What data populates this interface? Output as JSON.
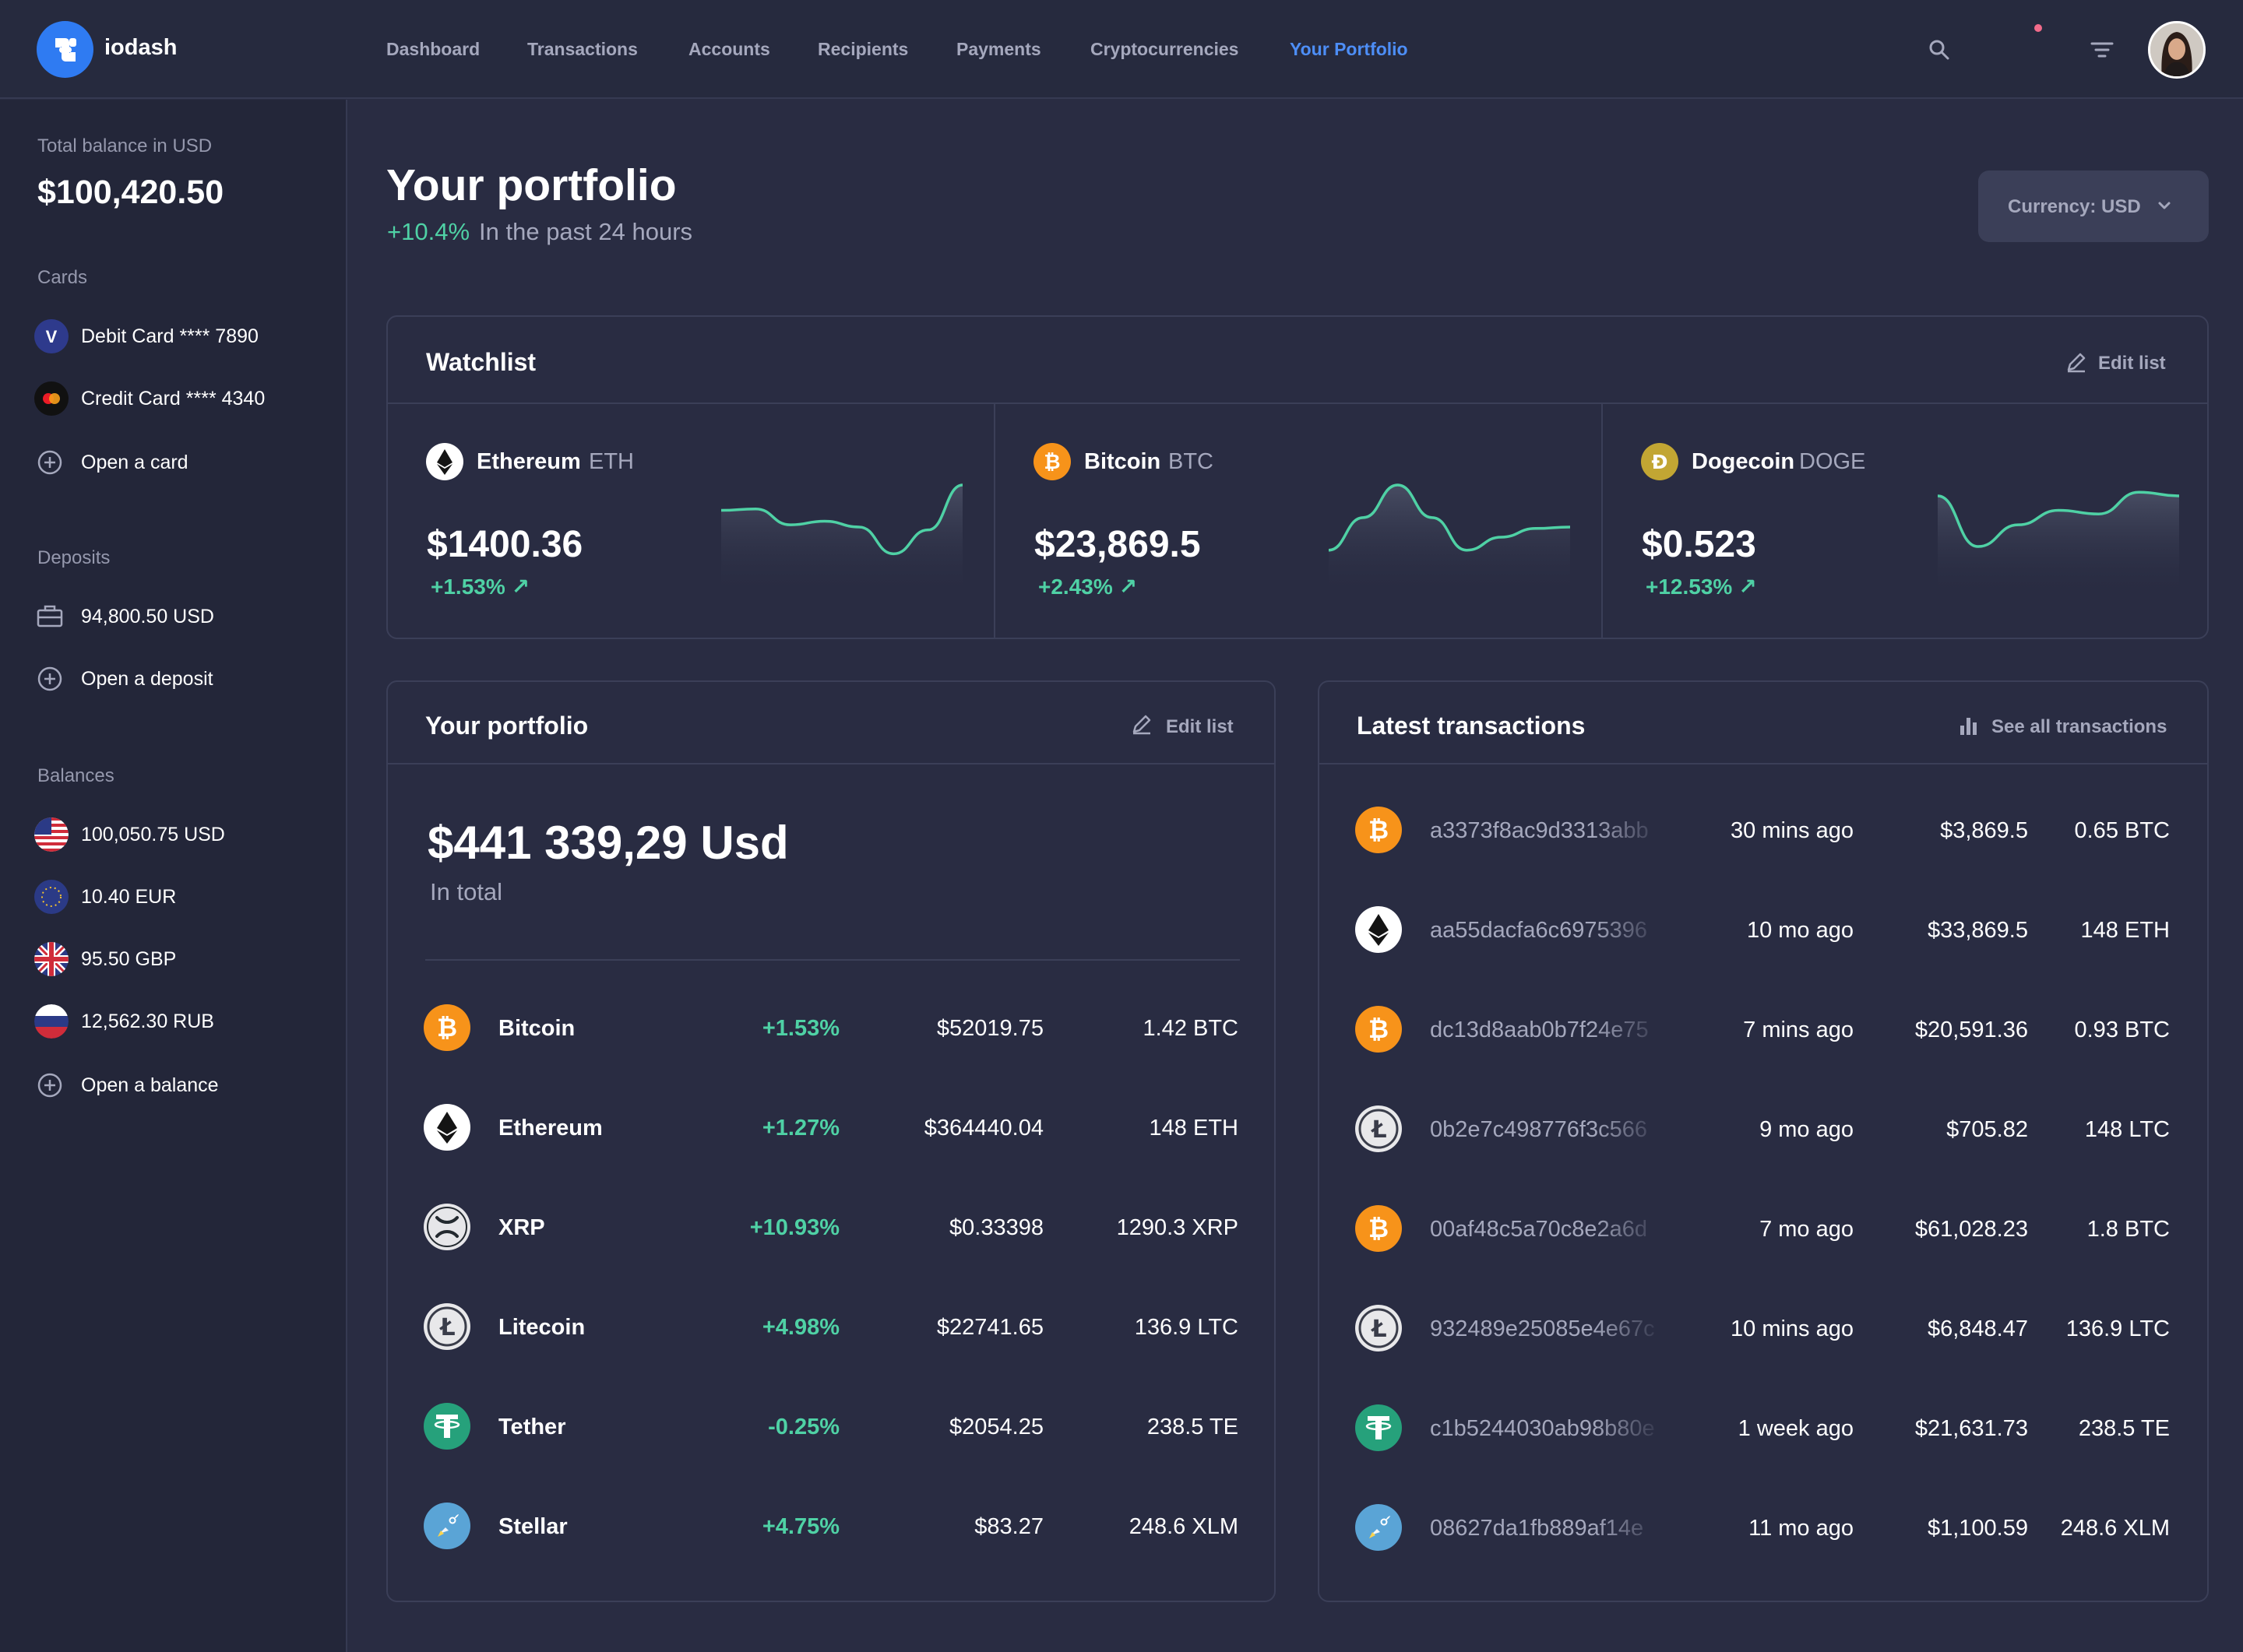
{
  "app": {
    "name": "iodash",
    "logo_icon": "puzzle-logo-icon"
  },
  "nav": {
    "items": [
      {
        "label": "Dashboard",
        "active": false
      },
      {
        "label": "Transactions",
        "active": false
      },
      {
        "label": "Accounts",
        "active": false
      },
      {
        "label": "Recipients",
        "active": false
      },
      {
        "label": "Payments",
        "active": false
      },
      {
        "label": "Cryptocurrencies",
        "active": false
      },
      {
        "label": "Your Portfolio",
        "active": true
      }
    ]
  },
  "sidebar": {
    "total_label": "Total balance in USD",
    "total_value": "$100,420.50",
    "cards_label": "Cards",
    "cards": [
      {
        "label": "Debit Card **** 7890",
        "icon": "visa-icon"
      },
      {
        "label": "Credit Card **** 4340",
        "icon": "mastercard-icon"
      },
      {
        "label": "Open a card",
        "icon": "plus-circle-icon"
      }
    ],
    "deposits_label": "Deposits",
    "deposits": [
      {
        "label": "94,800.50 USD",
        "icon": "briefcase-icon"
      },
      {
        "label": "Open a deposit",
        "icon": "plus-circle-icon"
      }
    ],
    "balances_label": "Balances",
    "balances": [
      {
        "label": "100,050.75 USD",
        "icon": "us-flag-icon"
      },
      {
        "label": "10.40 EUR",
        "icon": "eu-flag-icon"
      },
      {
        "label": "95.50 GBP",
        "icon": "uk-flag-icon"
      },
      {
        "label": "12,562.30 RUB",
        "icon": "ru-flag-icon"
      },
      {
        "label": "Open a balance",
        "icon": "plus-circle-icon"
      }
    ]
  },
  "header": {
    "title": "Your portfolio",
    "change": "+10.4%",
    "period": "In the past 24 hours",
    "currency_label": "Currency: USD"
  },
  "watchlist": {
    "title": "Watchlist",
    "edit_label": "Edit list",
    "items": [
      {
        "name": "Ethereum",
        "symbol": "ETH",
        "price": "$1400.36",
        "change": "+1.53%",
        "spark": [
          0.35,
          0.33,
          0.55,
          0.5,
          0.58,
          0.95,
          0.62,
          0.0
        ]
      },
      {
        "name": "Bitcoin",
        "symbol": "BTC",
        "price": "$23,869.5",
        "change": "+2.43%",
        "spark": [
          0.9,
          0.45,
          0.0,
          0.45,
          0.9,
          0.72,
          0.6,
          0.58
        ]
      },
      {
        "name": "Dogecoin",
        "symbol": "DOGE",
        "price": "$0.523",
        "change": "+12.53%",
        "spark": [
          0.15,
          0.85,
          0.55,
          0.35,
          0.4,
          0.1,
          0.15
        ]
      }
    ]
  },
  "portfolio": {
    "title": "Your portfolio",
    "edit_label": "Edit list",
    "total": "$441 339,29 Usd",
    "total_sub": "In total",
    "rows": [
      {
        "name": "Bitcoin",
        "change": "+1.53%",
        "price": "$52019.75",
        "amount": "1.42 BTC",
        "coin": "btc"
      },
      {
        "name": "Ethereum",
        "change": "+1.27%",
        "price": "$364440.04",
        "amount": "148 ETH",
        "coin": "eth"
      },
      {
        "name": "XRP",
        "change": "+10.93%",
        "price": "$0.33398",
        "amount": "1290.3 XRP",
        "coin": "xrp"
      },
      {
        "name": "Litecoin",
        "change": "+4.98%",
        "price": "$22741.65",
        "amount": "136.9 LTC",
        "coin": "ltc"
      },
      {
        "name": "Tether",
        "change": "-0.25%",
        "price": "$2054.25",
        "amount": "238.5 TE",
        "coin": "usdt"
      },
      {
        "name": "Stellar",
        "change": "+4.75%",
        "price": "$83.27",
        "amount": "248.6 XLM",
        "coin": "xlm"
      }
    ]
  },
  "transactions": {
    "title": "Latest transactions",
    "see_all_label": "See all transactions",
    "rows": [
      {
        "hash": "a3373f8ac9d3313abb",
        "time": "30 mins ago",
        "usd": "$3,869.5",
        "amount": "0.65 BTC",
        "coin": "btc"
      },
      {
        "hash": "aa55dacfa6c6975396",
        "time": "10 mo ago",
        "usd": "$33,869.5",
        "amount": "148 ETH",
        "coin": "eth"
      },
      {
        "hash": "dc13d8aab0b7f24e75",
        "time": "7 mins ago",
        "usd": "$20,591.36",
        "amount": "0.93 BTC",
        "coin": "btc"
      },
      {
        "hash": "0b2e7c498776f3c566",
        "time": "9 mo ago",
        "usd": "$705.82",
        "amount": "148 LTC",
        "coin": "ltc"
      },
      {
        "hash": "00af48c5a70c8e2a6d",
        "time": "7 mo ago",
        "usd": "$61,028.23",
        "amount": "1.8 BTC",
        "coin": "btc"
      },
      {
        "hash": "932489e25085e4e67c",
        "time": "10 mins ago",
        "usd": "$6,848.47",
        "amount": "136.9 LTC",
        "coin": "ltc"
      },
      {
        "hash": "c1b5244030ab98b80e",
        "time": "1 week ago",
        "usd": "$21,631.73",
        "amount": "238.5 TE",
        "coin": "usdt"
      },
      {
        "hash": "08627da1fb889af14e",
        "time": "11 mo ago",
        "usd": "$1,100.59",
        "amount": "248.6 XLM",
        "coin": "xlm"
      }
    ]
  },
  "colors": {
    "accent": "#4d8ef7",
    "positive": "#4fd1a5",
    "muted": "#a5a8bd",
    "background": "#292c42",
    "sidebar": "#232639"
  }
}
